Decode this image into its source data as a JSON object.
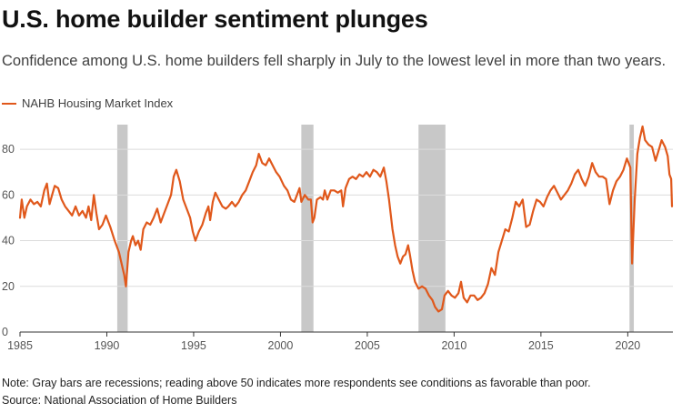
{
  "header": {
    "title": "U.S. home builder sentiment plunges",
    "subtitle": "Confidence among U.S. home builders fell sharply in July to the lowest level in more than two years."
  },
  "footer": {
    "note": "Note: Gray bars are recessions; reading above 50 indicates more respondents see conditions as favorable than poor.",
    "source": "Source: National Association of Home Builders"
  },
  "colors": {
    "series": "#e0581b",
    "recession": "#c8c8c8",
    "gridline": "#dcdcdc",
    "axis": "#333333"
  },
  "chart_data": {
    "type": "line",
    "title": "",
    "xlabel": "",
    "ylabel": "",
    "xlim": [
      1985,
      2022.6
    ],
    "ylim": [
      0,
      90
    ],
    "x_ticks": [
      1985,
      1990,
      1995,
      2000,
      2005,
      2010,
      2015,
      2020
    ],
    "y_ticks": [
      0,
      20,
      40,
      60,
      80
    ],
    "grid": "horizontal",
    "legend_position": "top-left",
    "recessions": [
      [
        1990.6,
        1991.2
      ],
      [
        2001.2,
        2001.9
      ],
      [
        2007.95,
        2009.5
      ],
      [
        2020.1,
        2020.35
      ]
    ],
    "series": [
      {
        "name": "NAHB Housing Market Index",
        "points": [
          [
            1985.0,
            50
          ],
          [
            1985.1,
            58
          ],
          [
            1985.25,
            50
          ],
          [
            1985.4,
            55
          ],
          [
            1985.6,
            58
          ],
          [
            1985.8,
            56
          ],
          [
            1986.0,
            57
          ],
          [
            1986.2,
            55
          ],
          [
            1986.4,
            62
          ],
          [
            1986.55,
            65
          ],
          [
            1986.7,
            56
          ],
          [
            1986.85,
            60
          ],
          [
            1987.0,
            64
          ],
          [
            1987.2,
            63
          ],
          [
            1987.4,
            58
          ],
          [
            1987.6,
            55
          ],
          [
            1987.8,
            53
          ],
          [
            1988.0,
            51
          ],
          [
            1988.2,
            55
          ],
          [
            1988.4,
            51
          ],
          [
            1988.6,
            53
          ],
          [
            1988.8,
            50
          ],
          [
            1988.95,
            55
          ],
          [
            1989.1,
            49
          ],
          [
            1989.25,
            60
          ],
          [
            1989.4,
            52
          ],
          [
            1989.55,
            45
          ],
          [
            1989.75,
            47
          ],
          [
            1989.95,
            51
          ],
          [
            1990.2,
            46
          ],
          [
            1990.45,
            40
          ],
          [
            1990.7,
            35
          ],
          [
            1990.85,
            30
          ],
          [
            1991.0,
            25
          ],
          [
            1991.1,
            20
          ],
          [
            1991.25,
            35
          ],
          [
            1991.4,
            40
          ],
          [
            1991.5,
            42
          ],
          [
            1991.65,
            38
          ],
          [
            1991.8,
            40
          ],
          [
            1991.95,
            36
          ],
          [
            1992.1,
            45
          ],
          [
            1992.3,
            48
          ],
          [
            1992.5,
            47
          ],
          [
            1992.7,
            50
          ],
          [
            1992.9,
            54
          ],
          [
            1993.1,
            48
          ],
          [
            1993.3,
            52
          ],
          [
            1993.5,
            56
          ],
          [
            1993.7,
            60
          ],
          [
            1993.85,
            68
          ],
          [
            1994.0,
            71
          ],
          [
            1994.2,
            66
          ],
          [
            1994.4,
            58
          ],
          [
            1994.6,
            54
          ],
          [
            1994.8,
            50
          ],
          [
            1994.95,
            44
          ],
          [
            1995.1,
            40
          ],
          [
            1995.3,
            44
          ],
          [
            1995.5,
            47
          ],
          [
            1995.7,
            52
          ],
          [
            1995.85,
            55
          ],
          [
            1995.95,
            49
          ],
          [
            1996.1,
            57
          ],
          [
            1996.25,
            61
          ],
          [
            1996.45,
            58
          ],
          [
            1996.65,
            55
          ],
          [
            1996.85,
            54
          ],
          [
            1997.0,
            55
          ],
          [
            1997.2,
            57
          ],
          [
            1997.4,
            55
          ],
          [
            1997.6,
            57
          ],
          [
            1997.8,
            60
          ],
          [
            1998.0,
            62
          ],
          [
            1998.2,
            66
          ],
          [
            1998.4,
            70
          ],
          [
            1998.6,
            73
          ],
          [
            1998.75,
            78
          ],
          [
            1998.95,
            74
          ],
          [
            1999.15,
            73
          ],
          [
            1999.35,
            76
          ],
          [
            1999.55,
            73
          ],
          [
            1999.75,
            70
          ],
          [
            1999.95,
            68
          ],
          [
            2000.2,
            64
          ],
          [
            2000.4,
            62
          ],
          [
            2000.6,
            58
          ],
          [
            2000.8,
            57
          ],
          [
            2000.95,
            60
          ],
          [
            2001.1,
            63
          ],
          [
            2001.2,
            57
          ],
          [
            2001.4,
            60
          ],
          [
            2001.6,
            58
          ],
          [
            2001.75,
            58
          ],
          [
            2001.85,
            48
          ],
          [
            2001.95,
            50
          ],
          [
            2002.1,
            58
          ],
          [
            2002.3,
            59
          ],
          [
            2002.45,
            58
          ],
          [
            2002.55,
            62
          ],
          [
            2002.7,
            58
          ],
          [
            2002.9,
            62
          ],
          [
            2003.1,
            62
          ],
          [
            2003.3,
            61
          ],
          [
            2003.5,
            62
          ],
          [
            2003.6,
            55
          ],
          [
            2003.75,
            63
          ],
          [
            2003.95,
            67
          ],
          [
            2004.15,
            68
          ],
          [
            2004.35,
            67
          ],
          [
            2004.55,
            69
          ],
          [
            2004.75,
            68
          ],
          [
            2004.95,
            70
          ],
          [
            2005.15,
            68
          ],
          [
            2005.35,
            71
          ],
          [
            2005.55,
            70
          ],
          [
            2005.75,
            68
          ],
          [
            2005.95,
            72
          ],
          [
            2006.1,
            66
          ],
          [
            2006.25,
            58
          ],
          [
            2006.45,
            45
          ],
          [
            2006.6,
            38
          ],
          [
            2006.75,
            33
          ],
          [
            2006.9,
            30
          ],
          [
            2007.05,
            33
          ],
          [
            2007.2,
            34
          ],
          [
            2007.35,
            38
          ],
          [
            2007.45,
            34
          ],
          [
            2007.6,
            27
          ],
          [
            2007.75,
            22
          ],
          [
            2007.95,
            19
          ],
          [
            2008.15,
            20
          ],
          [
            2008.35,
            19
          ],
          [
            2008.55,
            16
          ],
          [
            2008.75,
            14
          ],
          [
            2008.9,
            11
          ],
          [
            2009.1,
            9
          ],
          [
            2009.3,
            10
          ],
          [
            2009.45,
            16
          ],
          [
            2009.65,
            18
          ],
          [
            2009.85,
            16
          ],
          [
            2010.05,
            15
          ],
          [
            2010.25,
            17
          ],
          [
            2010.4,
            22
          ],
          [
            2010.55,
            15
          ],
          [
            2010.75,
            13
          ],
          [
            2010.95,
            16
          ],
          [
            2011.15,
            16
          ],
          [
            2011.35,
            14
          ],
          [
            2011.55,
            15
          ],
          [
            2011.75,
            17
          ],
          [
            2011.95,
            21
          ],
          [
            2012.15,
            28
          ],
          [
            2012.35,
            25
          ],
          [
            2012.55,
            35
          ],
          [
            2012.75,
            40
          ],
          [
            2012.95,
            45
          ],
          [
            2013.15,
            44
          ],
          [
            2013.35,
            50
          ],
          [
            2013.55,
            57
          ],
          [
            2013.75,
            55
          ],
          [
            2013.95,
            58
          ],
          [
            2014.15,
            46
          ],
          [
            2014.35,
            47
          ],
          [
            2014.55,
            53
          ],
          [
            2014.75,
            58
          ],
          [
            2014.95,
            57
          ],
          [
            2015.15,
            55
          ],
          [
            2015.35,
            59
          ],
          [
            2015.55,
            62
          ],
          [
            2015.75,
            64
          ],
          [
            2015.95,
            61
          ],
          [
            2016.15,
            58
          ],
          [
            2016.35,
            60
          ],
          [
            2016.55,
            62
          ],
          [
            2016.75,
            65
          ],
          [
            2016.95,
            69
          ],
          [
            2017.15,
            71
          ],
          [
            2017.35,
            67
          ],
          [
            2017.55,
            64
          ],
          [
            2017.75,
            68
          ],
          [
            2017.95,
            74
          ],
          [
            2018.15,
            70
          ],
          [
            2018.35,
            68
          ],
          [
            2018.55,
            68
          ],
          [
            2018.75,
            67
          ],
          [
            2018.95,
            56
          ],
          [
            2019.15,
            62
          ],
          [
            2019.35,
            66
          ],
          [
            2019.55,
            68
          ],
          [
            2019.75,
            71
          ],
          [
            2019.95,
            76
          ],
          [
            2020.15,
            72
          ],
          [
            2020.25,
            30
          ],
          [
            2020.4,
            58
          ],
          [
            2020.55,
            78
          ],
          [
            2020.7,
            85
          ],
          [
            2020.85,
            90
          ],
          [
            2021.0,
            84
          ],
          [
            2021.2,
            82
          ],
          [
            2021.4,
            81
          ],
          [
            2021.6,
            75
          ],
          [
            2021.8,
            80
          ],
          [
            2021.95,
            84
          ],
          [
            2022.15,
            81
          ],
          [
            2022.3,
            77
          ],
          [
            2022.4,
            69
          ],
          [
            2022.5,
            67
          ],
          [
            2022.55,
            55
          ]
        ]
      }
    ]
  }
}
